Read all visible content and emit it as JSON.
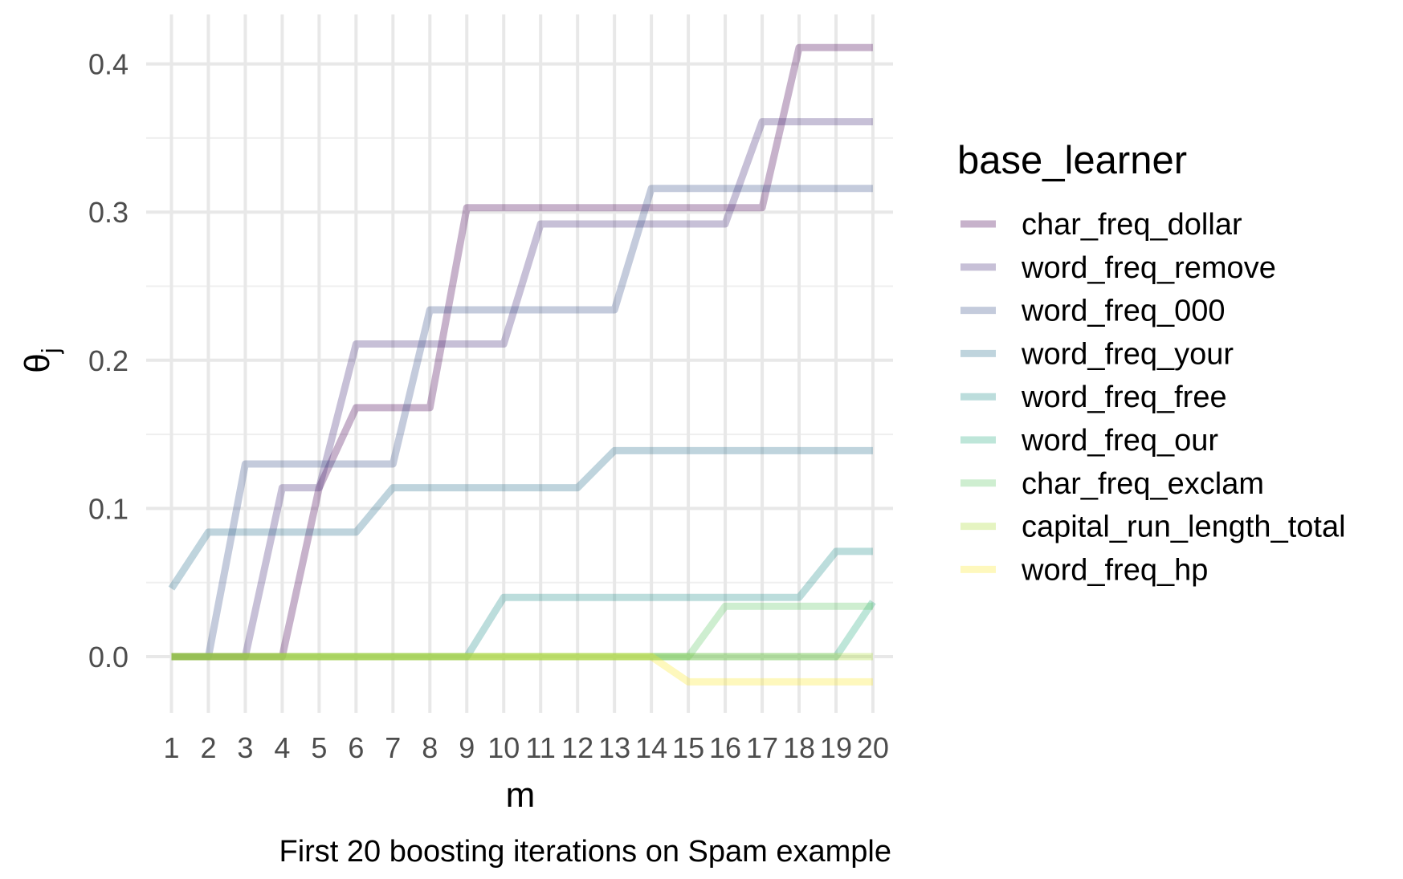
{
  "chart_data": {
    "type": "line",
    "xlabel": "m",
    "ylabel": "θ",
    "ylabel_subscript": "j",
    "caption": "First 20 boosting iterations on Spam example",
    "x": [
      1,
      2,
      3,
      4,
      5,
      6,
      7,
      8,
      9,
      10,
      11,
      12,
      13,
      14,
      15,
      16,
      17,
      18,
      19,
      20
    ],
    "x_tick_labels": [
      "1",
      "2",
      "3",
      "4",
      "5",
      "6",
      "7",
      "8",
      "9",
      "10",
      "11",
      "12",
      "13",
      "14",
      "15",
      "16",
      "17",
      "18",
      "19",
      "20"
    ],
    "ylim": [
      -0.04,
      0.43
    ],
    "y_ticks": [
      0.0,
      0.1,
      0.2,
      0.3,
      0.4
    ],
    "y_tick_labels": [
      "0.0",
      "0.1",
      "0.2",
      "0.3",
      "0.4"
    ],
    "grid": true,
    "legend_position": "right",
    "legend_title": "base_learner",
    "series": [
      {
        "name": "char_freq_dollar",
        "color": "#440154",
        "values": [
          0,
          0,
          0,
          0,
          0.114,
          0.168,
          0.168,
          0.168,
          0.303,
          0.303,
          0.303,
          0.303,
          0.303,
          0.303,
          0.303,
          0.303,
          0.303,
          0.411,
          0.411,
          0.411
        ]
      },
      {
        "name": "word_freq_remove",
        "color": "#472D7B",
        "values": [
          0,
          0,
          0,
          0.114,
          0.114,
          0.211,
          0.211,
          0.211,
          0.211,
          0.211,
          0.292,
          0.292,
          0.292,
          0.292,
          0.292,
          0.292,
          0.361,
          0.361,
          0.361,
          0.361
        ]
      },
      {
        "name": "word_freq_000",
        "color": "#3B528B",
        "values": [
          0,
          0,
          0.13,
          0.13,
          0.13,
          0.13,
          0.13,
          0.234,
          0.234,
          0.234,
          0.234,
          0.234,
          0.234,
          0.316,
          0.316,
          0.316,
          0.316,
          0.316,
          0.316,
          0.316
        ]
      },
      {
        "name": "word_freq_your",
        "color": "#2C728E",
        "values": [
          0.046,
          0.084,
          0.084,
          0.084,
          0.084,
          0.084,
          0.114,
          0.114,
          0.114,
          0.114,
          0.114,
          0.114,
          0.139,
          0.139,
          0.139,
          0.139,
          0.139,
          0.139,
          0.139,
          0.139
        ]
      },
      {
        "name": "word_freq_free",
        "color": "#21908C",
        "values": [
          0,
          0,
          0,
          0,
          0,
          0,
          0,
          0,
          0,
          0.04,
          0.04,
          0.04,
          0.04,
          0.04,
          0.04,
          0.04,
          0.04,
          0.04,
          0.071,
          0.071
        ]
      },
      {
        "name": "word_freq_our",
        "color": "#27AD81",
        "values": [
          0,
          0,
          0,
          0,
          0,
          0,
          0,
          0,
          0,
          0,
          0,
          0,
          0,
          0,
          0,
          0,
          0,
          0,
          0,
          0.037
        ]
      },
      {
        "name": "char_freq_exclam",
        "color": "#5DC863",
        "values": [
          0,
          0,
          0,
          0,
          0,
          0,
          0,
          0,
          0,
          0,
          0,
          0,
          0,
          0,
          0,
          0.034,
          0.034,
          0.034,
          0.034,
          0.034
        ]
      },
      {
        "name": "capital_run_length_total",
        "color": "#AADC32",
        "values": [
          0,
          0,
          0,
          0,
          0,
          0,
          0,
          0,
          0,
          0,
          0,
          0,
          0,
          0,
          0,
          0,
          0,
          0,
          0,
          0
        ]
      },
      {
        "name": "word_freq_hp",
        "color": "#FDE725",
        "values": [
          0,
          0,
          0,
          0,
          0,
          0,
          0,
          0,
          0,
          0,
          0,
          0,
          0,
          0,
          -0.017,
          -0.017,
          -0.017,
          -0.017,
          -0.017,
          -0.017
        ]
      }
    ]
  }
}
